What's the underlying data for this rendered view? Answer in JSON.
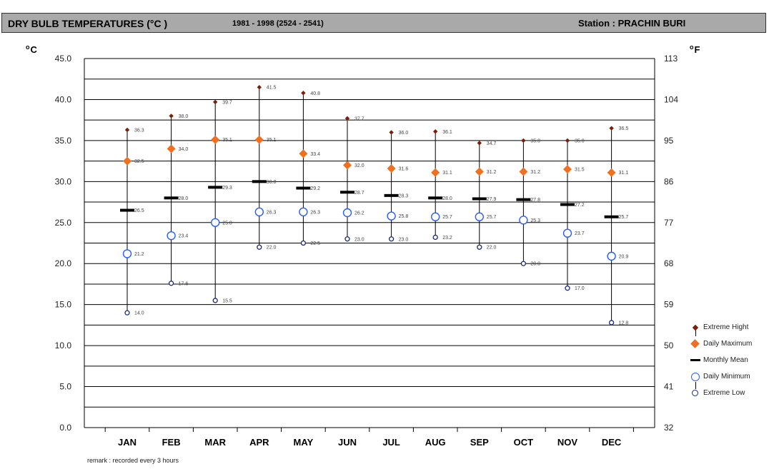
{
  "header": {
    "title": "DRY  BULB TEMPERATURES (°C )",
    "period": "1981 - 1998 (2524 - 2541)",
    "station": "Station  : PRACHIN BURI"
  },
  "remark": "remark : recorded every 3 hours",
  "units": {
    "left": "C",
    "right": "F"
  },
  "legend": {
    "extreme_high": "Extreme Hight",
    "daily_max": "Daily Maximum",
    "monthly_mean": "Monthly Mean",
    "daily_min": "Daily Minimum",
    "extreme_low": "Extreme Low"
  },
  "colors": {
    "extreme_high": "#7a1f0a",
    "daily_max": "#f07020",
    "monthly_mean": "#000000",
    "daily_min": "#2a5cff",
    "extreme_low": "#1a2a7a",
    "title_bar": "#a9a9a9"
  },
  "chart_data": {
    "type": "scatter",
    "categories": [
      "JAN",
      "FEB",
      "MAR",
      "APR",
      "MAY",
      "JUN",
      "JUL",
      "AUG",
      "SEP",
      "OCT",
      "NOV",
      "DEC"
    ],
    "series": [
      {
        "name": "Extreme Hight",
        "values": [
          36.3,
          38.0,
          39.7,
          41.5,
          40.8,
          37.7,
          36.0,
          36.1,
          34.7,
          35.0,
          35.0,
          36.5
        ]
      },
      {
        "name": "Daily Maximum",
        "values": [
          32.5,
          34.0,
          35.1,
          35.1,
          33.4,
          32.0,
          31.6,
          31.1,
          31.2,
          31.2,
          31.5,
          31.1
        ]
      },
      {
        "name": "Monthly Mean",
        "values": [
          26.5,
          28.0,
          29.3,
          30.0,
          29.2,
          28.7,
          28.3,
          28.0,
          27.9,
          27.8,
          27.2,
          25.7
        ]
      },
      {
        "name": "Daily Minimum",
        "values": [
          21.2,
          23.4,
          25.0,
          26.3,
          26.3,
          26.2,
          25.8,
          25.7,
          25.7,
          25.3,
          23.7,
          20.9
        ]
      },
      {
        "name": "Extreme Low",
        "values": [
          14.0,
          17.6,
          15.5,
          22.0,
          22.5,
          23.0,
          23.0,
          23.2,
          22.0,
          20.0,
          17.0,
          12.8
        ]
      }
    ],
    "ylim": [
      0,
      45
    ],
    "yticks": [
      "0.0",
      "5.0",
      "10.0",
      "15.0",
      "20.0",
      "25.0",
      "30.0",
      "35.0",
      "40.0",
      "45.0"
    ],
    "y2ticks": [
      "32",
      "41",
      "50",
      "59",
      "68",
      "77",
      "86",
      "95",
      "104",
      "113"
    ],
    "grid": true,
    "legend_position": "right"
  }
}
